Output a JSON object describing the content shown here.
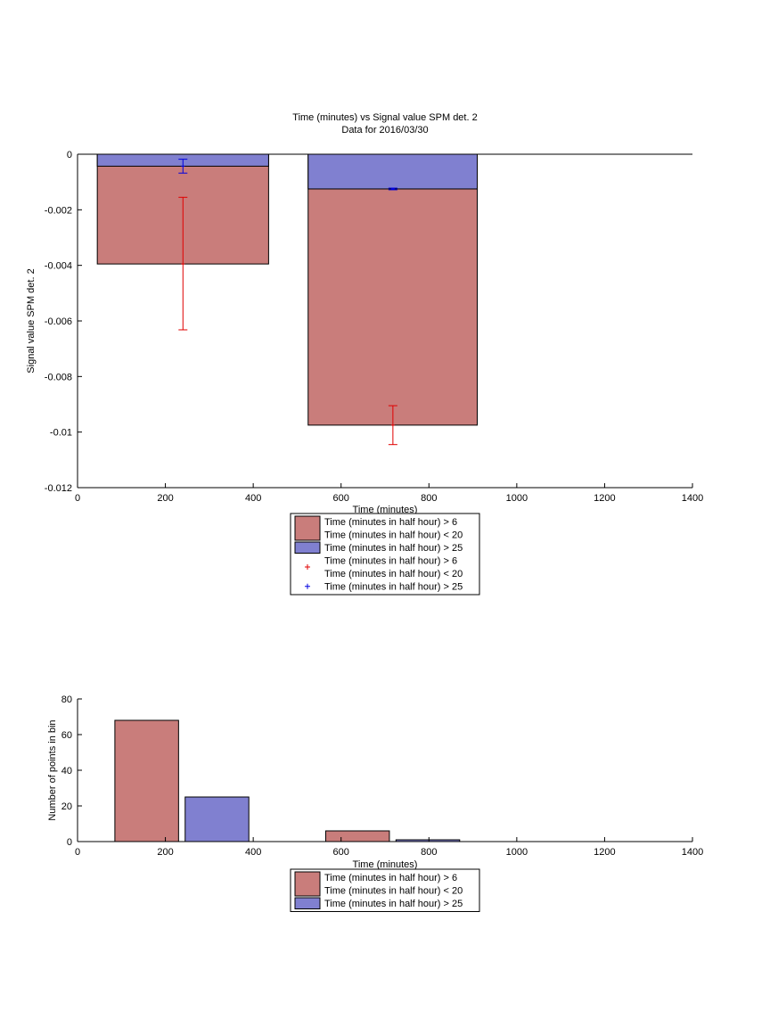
{
  "colors": {
    "red_bar": "#c97d7b",
    "blue_bar": "#8080d0",
    "red_err": "#e00000",
    "blue_err": "#0000e0"
  },
  "chart_data": [
    {
      "type": "bar",
      "title": "Time (minutes) vs Signal value SPM det. 2",
      "subtitle": "Data for 2016/03/30",
      "xlabel": "Time (minutes)",
      "ylabel": "Signal value SPM det. 2",
      "xlim": [
        0,
        1400
      ],
      "ylim": [
        -0.012,
        0
      ],
      "xticks": [
        "0",
        "200",
        "400",
        "600",
        "800",
        "1000",
        "1200",
        "1400"
      ],
      "yticks": [
        "0",
        "-0.002",
        "-0.004",
        "-0.006",
        "-0.008",
        "-0.01",
        "-0.012"
      ],
      "grid": false,
      "legend_position": "bottom-center",
      "series": [
        {
          "name": "Time (minutes in half hour) > 6\nTime (minutes in half hour) < 20",
          "color": "red_bar",
          "bars": [
            {
              "x_start": 45,
              "x_end": 435,
              "value": -0.00395
            },
            {
              "x_start": 525,
              "x_end": 910,
              "value": -0.00975
            }
          ]
        },
        {
          "name": "Time (minutes in half hour) > 25",
          "color": "blue_bar",
          "bars": [
            {
              "x_start": 45,
              "x_end": 435,
              "value": -0.00043
            },
            {
              "x_start": 525,
              "x_end": 910,
              "value": -0.00125
            }
          ]
        }
      ],
      "errorbars": [
        {
          "name": "Time (minutes in half hour) > 6\nTime (minutes in half hour) < 20",
          "color": "red_err",
          "points": [
            {
              "x": 240,
              "y": -0.00395,
              "low": -0.00632,
              "high": -0.00155
            },
            {
              "x": 718,
              "y": -0.00975,
              "low": -0.01045,
              "high": -0.00905
            }
          ]
        },
        {
          "name": "Time (minutes in half hour) > 25",
          "color": "blue_err",
          "points": [
            {
              "x": 240,
              "y": -0.00043,
              "low": -0.00068,
              "high": -0.00018
            },
            {
              "x": 718,
              "y": -0.00125,
              "low": -0.00128,
              "high": -0.00122
            }
          ]
        }
      ],
      "legend": [
        {
          "kind": "patch",
          "color": "red_bar",
          "lines": [
            "Time (minutes in half hour) > 6",
            "Time (minutes in half hour) < 20"
          ]
        },
        {
          "kind": "patch",
          "color": "blue_bar",
          "lines": [
            "Time (minutes in half hour) > 25"
          ]
        },
        {
          "kind": "marker",
          "color": "red_err",
          "lines": [
            "Time (minutes in half hour) > 6",
            "Time (minutes in half hour) < 20"
          ]
        },
        {
          "kind": "marker",
          "color": "blue_err",
          "lines": [
            "Time (minutes in half hour) > 25"
          ]
        }
      ]
    },
    {
      "type": "bar",
      "title": "",
      "xlabel": "Time (minutes)",
      "ylabel": "Number of points in bin",
      "xlim": [
        0,
        1400
      ],
      "ylim": [
        0,
        80
      ],
      "xticks": [
        "0",
        "200",
        "400",
        "600",
        "800",
        "1000",
        "1200",
        "1400"
      ],
      "yticks": [
        "0",
        "20",
        "40",
        "60",
        "80"
      ],
      "grid": false,
      "legend_position": "bottom-center",
      "series": [
        {
          "name": "Time (minutes in half hour) > 6\nTime (minutes in half hour) < 20",
          "color": "red_bar",
          "bars": [
            {
              "x_start": 85,
              "x_end": 230,
              "value": 68
            },
            {
              "x_start": 565,
              "x_end": 710,
              "value": 6
            }
          ]
        },
        {
          "name": "Time (minutes in half hour) > 25",
          "color": "blue_bar",
          "bars": [
            {
              "x_start": 245,
              "x_end": 390,
              "value": 25
            },
            {
              "x_start": 725,
              "x_end": 870,
              "value": 1
            }
          ]
        }
      ],
      "legend": [
        {
          "kind": "patch",
          "color": "red_bar",
          "lines": [
            "Time (minutes in half hour) > 6",
            "Time (minutes in half hour) < 20"
          ]
        },
        {
          "kind": "patch",
          "color": "blue_bar",
          "lines": [
            "Time (minutes in half hour) > 25"
          ]
        }
      ]
    }
  ]
}
